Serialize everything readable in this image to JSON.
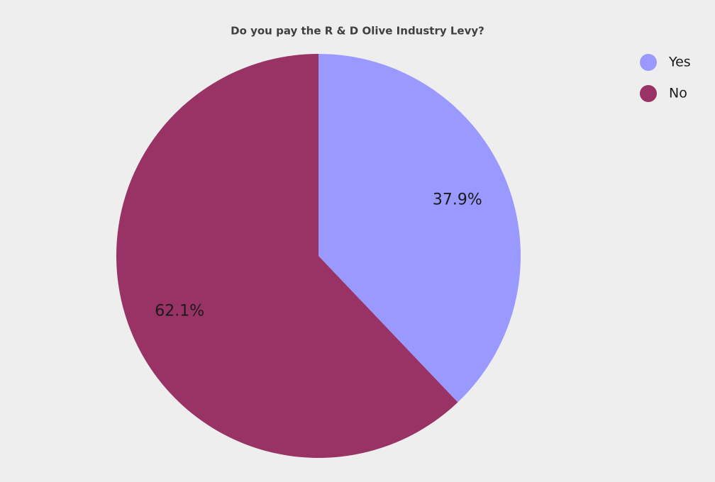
{
  "chart_data": {
    "type": "pie",
    "title": "Do you pay the R & D Olive Industry Levy?",
    "categories": [
      "Yes",
      "No"
    ],
    "values": [
      37.9,
      62.1
    ],
    "value_labels": [
      "37.9%",
      "62.1%"
    ],
    "colors": [
      "#9999ff",
      "#993366"
    ],
    "legend": "top-right"
  }
}
